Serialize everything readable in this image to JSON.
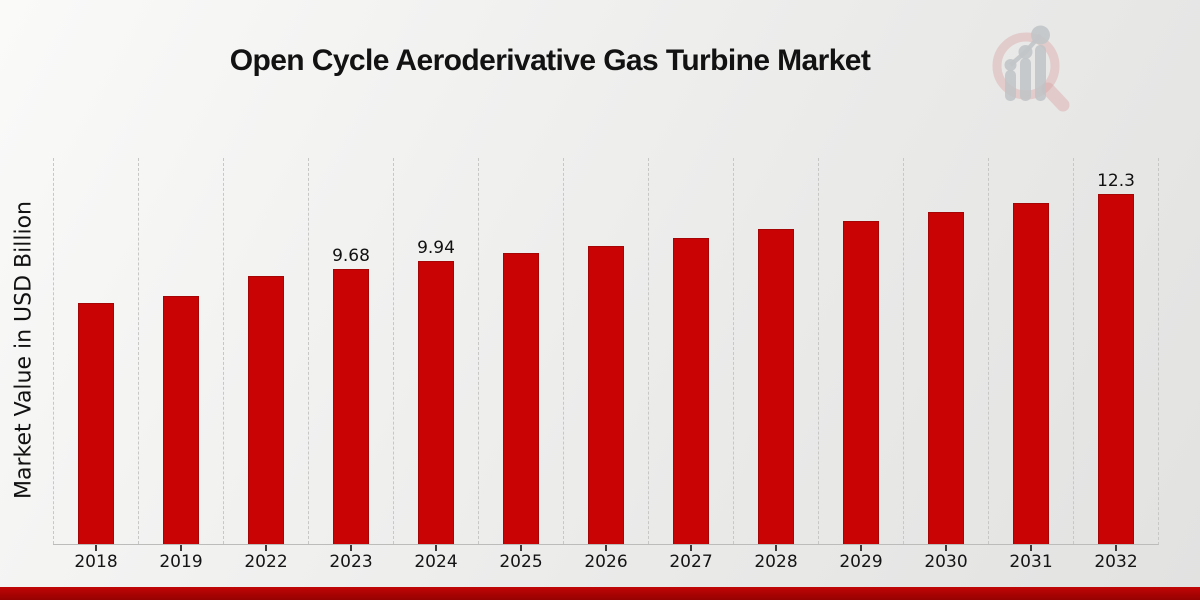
{
  "header": {
    "title": "Open Cycle Aeroderivative Gas Turbine Market"
  },
  "axes": {
    "y_label": "Market Value in USD Billion"
  },
  "chart_data": {
    "type": "bar",
    "title": "Open Cycle Aeroderivative Gas Turbine Market",
    "xlabel": "",
    "ylabel": "Market Value in USD Billion",
    "categories": [
      "2018",
      "2019",
      "2022",
      "2023",
      "2024",
      "2025",
      "2026",
      "2027",
      "2028",
      "2029",
      "2030",
      "2031",
      "2032"
    ],
    "values": [
      8.46,
      8.71,
      9.42,
      9.68,
      9.94,
      10.21,
      10.48,
      10.77,
      11.06,
      11.35,
      11.66,
      11.98,
      12.3
    ],
    "bar_labels": [
      "",
      "",
      "",
      "9.68",
      "9.94",
      "",
      "",
      "",
      "",
      "",
      "",
      "",
      "12.3"
    ],
    "ylim": [
      0,
      13.6
    ],
    "grid": "vertical-dashed",
    "legend": "none",
    "bar_color": "#c90303",
    "bar_border_color": "#a50505",
    "label_color": "#111111",
    "footer_accent_color": "#a90303"
  }
}
